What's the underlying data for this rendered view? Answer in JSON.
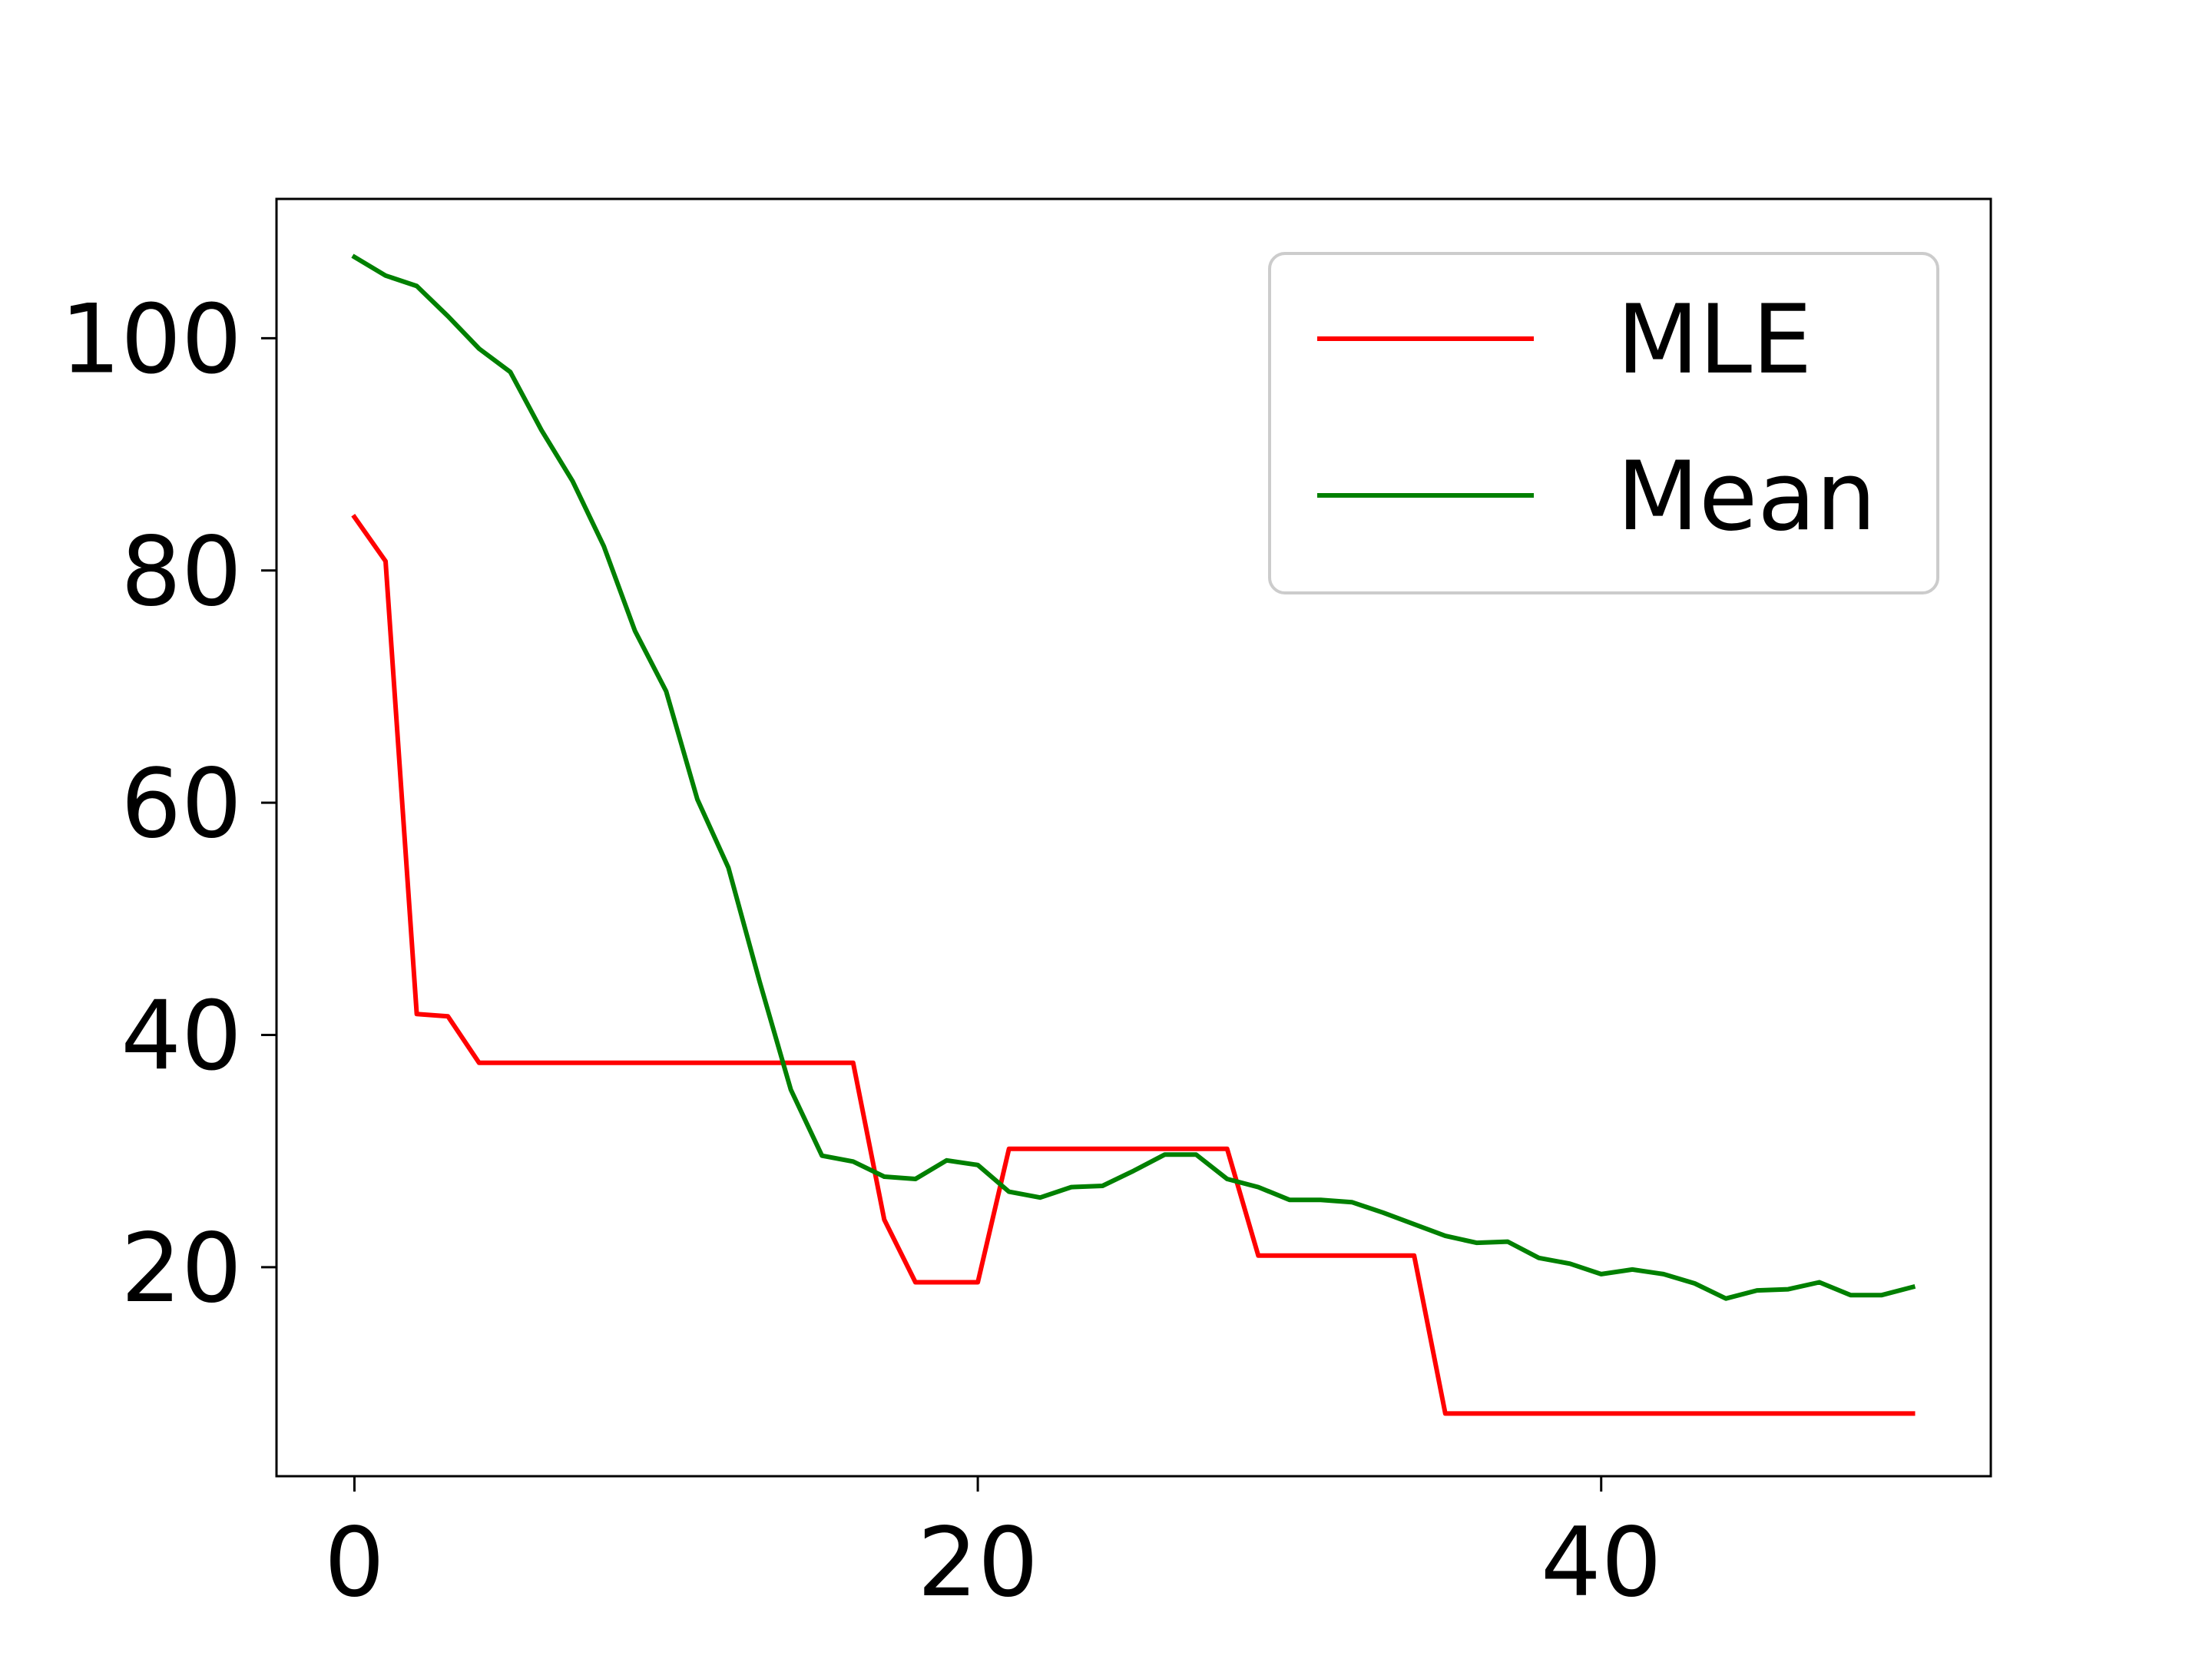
{
  "chart_data": {
    "type": "line",
    "title": "",
    "xlabel": "",
    "ylabel": "",
    "xlim": [
      -2.5,
      52.5
    ],
    "ylim": [
      2,
      112
    ],
    "xticks": [
      0,
      20,
      40
    ],
    "yticks": [
      20,
      40,
      60,
      80,
      100
    ],
    "xtick_labels": [
      "0",
      "20",
      "40"
    ],
    "ytick_labels": [
      "20",
      "40",
      "60",
      "80",
      "100"
    ],
    "grid": false,
    "legend_position": "top-right",
    "series": [
      {
        "name": "MLE",
        "color": "#ff0000",
        "x": [
          0,
          1,
          2,
          3,
          4,
          5,
          6,
          7,
          8,
          9,
          10,
          11,
          12,
          13,
          14,
          15,
          16,
          17,
          18,
          19,
          20,
          21,
          22,
          23,
          24,
          25,
          26,
          27,
          28,
          29,
          30,
          31,
          32,
          33,
          34,
          35,
          36,
          37,
          38,
          39,
          40,
          41,
          42,
          43,
          44,
          45,
          46,
          47,
          48,
          49,
          50
        ],
        "values": [
          84.6,
          80.8,
          41.8,
          41.6,
          37.6,
          37.6,
          37.6,
          37.6,
          37.6,
          37.6,
          37.6,
          37.6,
          37.6,
          37.6,
          37.6,
          37.6,
          37.6,
          24.1,
          18.7,
          18.7,
          18.7,
          30.2,
          30.2,
          30.2,
          30.2,
          30.2,
          30.2,
          30.2,
          30.2,
          21.0,
          21.0,
          21.0,
          21.0,
          21.0,
          21.0,
          7.4,
          7.4,
          7.4,
          7.4,
          7.4,
          7.4,
          7.4,
          7.4,
          7.4,
          7.4,
          7.4,
          7.4,
          7.4,
          7.4,
          7.4,
          7.4
        ]
      },
      {
        "name": "Mean",
        "color": "#008000",
        "x": [
          0,
          1,
          2,
          3,
          4,
          5,
          6,
          7,
          8,
          9,
          10,
          11,
          12,
          13,
          14,
          15,
          16,
          17,
          18,
          19,
          20,
          21,
          22,
          23,
          24,
          25,
          26,
          27,
          28,
          29,
          30,
          31,
          32,
          33,
          34,
          35,
          36,
          37,
          38,
          39,
          40,
          41,
          42,
          43,
          44,
          45,
          46,
          47,
          48,
          49,
          50
        ],
        "values": [
          107.0,
          105.4,
          104.5,
          101.9,
          99.1,
          97.1,
          92.1,
          87.7,
          82.1,
          74.8,
          69.6,
          60.3,
          54.4,
          44.6,
          35.3,
          29.6,
          29.1,
          27.8,
          27.6,
          29.2,
          28.8,
          26.5,
          26.0,
          26.9,
          27.0,
          28.3,
          29.7,
          29.7,
          27.6,
          26.9,
          25.8,
          25.8,
          25.6,
          24.7,
          23.7,
          22.7,
          22.1,
          22.2,
          20.8,
          20.3,
          19.4,
          19.8,
          19.4,
          18.6,
          17.3,
          18.0,
          18.1,
          18.7,
          17.6,
          17.6,
          18.3
        ]
      }
    ]
  }
}
